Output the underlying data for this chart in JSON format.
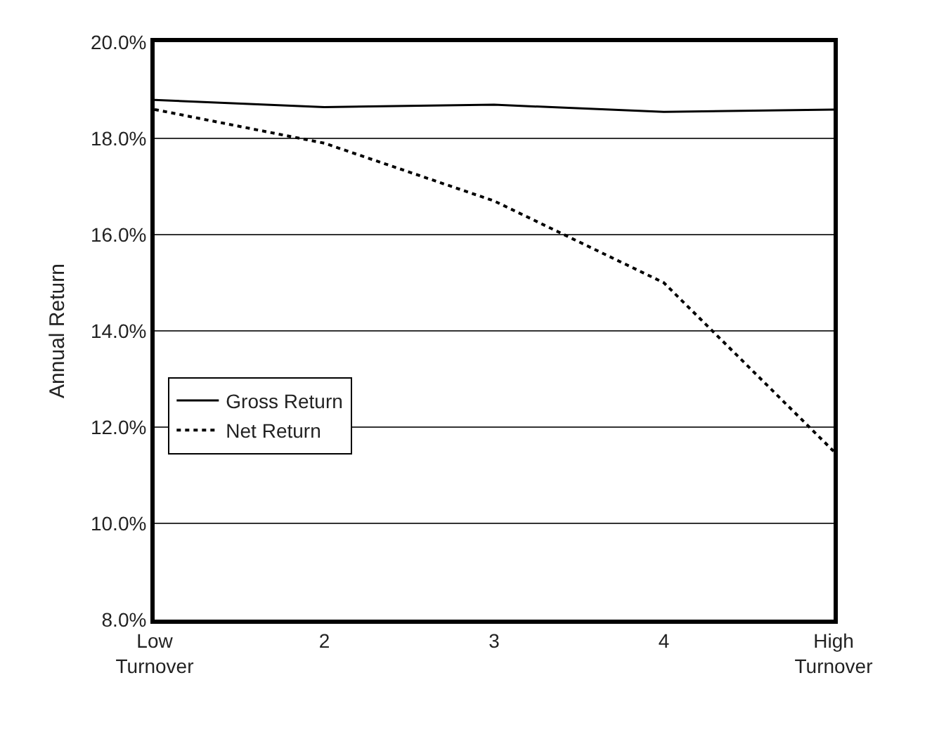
{
  "chart_data": {
    "type": "line",
    "ylabel": "Annual Return",
    "categories": [
      "Low Turnover",
      "2",
      "3",
      "4",
      "High Turnover"
    ],
    "series": [
      {
        "name": "Gross Return",
        "color": "#000000",
        "line_style": "solid",
        "values": [
          18.8,
          18.65,
          18.7,
          18.55,
          18.6
        ]
      },
      {
        "name": "Net Return",
        "color": "#000000",
        "line_style": "dotted",
        "values": [
          18.6,
          17.9,
          16.7,
          15.0,
          11.5
        ]
      }
    ],
    "ylim": [
      8,
      20
    ],
    "yticks": [
      {
        "value": 8,
        "label": "8.0%"
      },
      {
        "value": 10,
        "label": "10.0%"
      },
      {
        "value": 12,
        "label": "12.0%"
      },
      {
        "value": 14,
        "label": "14.0%"
      },
      {
        "value": 16,
        "label": "16.0%"
      },
      {
        "value": 18,
        "label": "18.0%"
      },
      {
        "value": 20,
        "label": "20.0%"
      }
    ],
    "grid": "y",
    "legend": "left",
    "marker": "none"
  }
}
